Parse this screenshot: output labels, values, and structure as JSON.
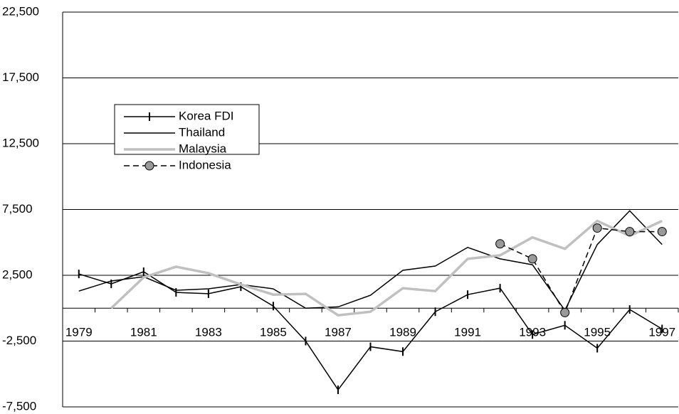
{
  "chart_data": {
    "type": "line",
    "categories": [
      "1979",
      null,
      "1981",
      null,
      "1983",
      null,
      "1985",
      null,
      "1987",
      null,
      "1989",
      null,
      "1991",
      null,
      "1993",
      null,
      "1995",
      null,
      "1997"
    ],
    "series": [
      {
        "name": "Korea FDI",
        "color": "#000000",
        "values": [
          2600,
          1850,
          2770,
          1200,
          1100,
          1630,
          160,
          -2500,
          -6200,
          -2930,
          -3300,
          -270,
          1030,
          1520,
          -2000,
          -1300,
          -3040,
          -100,
          -1580
        ]
      },
      {
        "name": "Thailand",
        "color": "#000000",
        "values": [
          1300,
          2070,
          2390,
          1360,
          1470,
          1800,
          1470,
          0,
          100,
          980,
          2880,
          3200,
          4620,
          3750,
          3300,
          -160,
          4840,
          7400,
          4840
        ]
      },
      {
        "name": "Malaysia",
        "color": "#c0c0c0",
        "values": [
          null,
          0,
          2340,
          3150,
          2660,
          1800,
          1030,
          1090,
          -540,
          -270,
          1520,
          1300,
          3750,
          4020,
          5380,
          4510,
          6630,
          5490,
          6630
        ]
      },
      {
        "name": "Indonesia",
        "color": "#000000",
        "values": [
          null,
          null,
          null,
          null,
          null,
          null,
          null,
          null,
          null,
          null,
          null,
          null,
          null,
          4890,
          3750,
          -330,
          6090,
          5820,
          5820
        ]
      }
    ],
    "ylim": [
      -7500,
      22500
    ],
    "yticks": [
      {
        "value": -7500,
        "label": "-7,500"
      },
      {
        "value": -2500,
        "label": "-2,500"
      },
      {
        "value": 2500,
        "label": "2,500"
      },
      {
        "value": 7500,
        "label": "7,500"
      },
      {
        "value": 12500,
        "label": "12,500"
      },
      {
        "value": 17500,
        "label": "17,500"
      },
      {
        "value": 22500,
        "label": "22,500"
      }
    ],
    "grid": true
  }
}
